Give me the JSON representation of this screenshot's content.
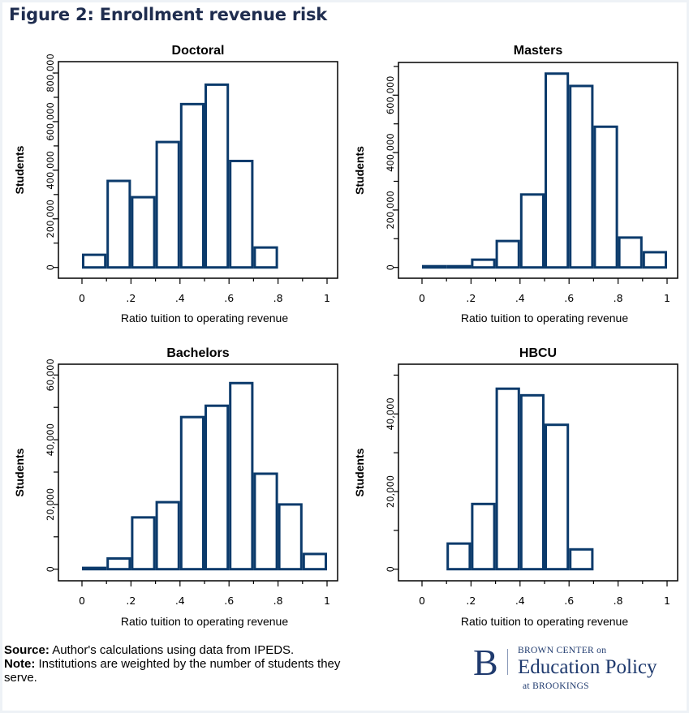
{
  "figure": {
    "title": "Figure 2: Enrollment revenue risk"
  },
  "footer": {
    "source_label": "Source:",
    "source_text": " Author's calculations using data from IPEDS.",
    "note_label": "Note:",
    "note_text": " Institutions are weighted by the number of students they serve."
  },
  "logo": {
    "mark": "B",
    "line1": "BROWN CENTER on",
    "line2": "Education Policy",
    "line3": "at BROOKINGS"
  },
  "colors": {
    "bar_stroke": "#0b3a6b",
    "bar_fill": "#ffffff",
    "title": "#1f2d4f"
  },
  "chart_data": [
    {
      "type": "bar",
      "title": "Doctoral",
      "xlabel": "Ratio tuition to operating revenue",
      "ylabel": "Students",
      "bin_edges": [
        0,
        0.1,
        0.2,
        0.3,
        0.4,
        0.5,
        0.6,
        0.7,
        0.8
      ],
      "values": [
        52000,
        356000,
        289000,
        516000,
        672000,
        752000,
        438000,
        82000
      ],
      "xlim": [
        0,
        1
      ],
      "xticks": [
        "0",
        ".2",
        ".4",
        ".6",
        ".8",
        "1"
      ],
      "yticks": [
        "0",
        "200,000",
        "400,000",
        "600,000",
        "800,000"
      ],
      "ytick_values": [
        0,
        200000,
        400000,
        600000,
        800000
      ],
      "ylim": [
        0,
        800000
      ],
      "grid": false
    },
    {
      "type": "bar",
      "title": "Masters",
      "xlabel": "Ratio tuition to operating revenue",
      "ylabel": "Students",
      "bin_edges": [
        0,
        0.1,
        0.2,
        0.3,
        0.4,
        0.5,
        0.6,
        0.7,
        0.8,
        0.9,
        1.0
      ],
      "values": [
        2000,
        1000,
        27000,
        92000,
        254000,
        675000,
        632000,
        490000,
        104000,
        53000
      ],
      "xlim": [
        0,
        1
      ],
      "xticks": [
        "0",
        ".2",
        ".4",
        ".6",
        ".8",
        "1"
      ],
      "yticks": [
        "0",
        "200,000",
        "400,000",
        "600,000"
      ],
      "ytick_values": [
        0,
        200000,
        400000,
        600000
      ],
      "ylim": [
        0,
        600000
      ],
      "grid": false
    },
    {
      "type": "bar",
      "title": "Bachelors",
      "xlabel": "Ratio tuition to operating revenue",
      "ylabel": "Students",
      "bin_edges": [
        0,
        0.1,
        0.2,
        0.3,
        0.4,
        0.5,
        0.6,
        0.7,
        0.8,
        0.9,
        1.0
      ],
      "values": [
        400,
        3300,
        16000,
        20700,
        47000,
        50500,
        57500,
        29500,
        20000,
        4700
      ],
      "xlim": [
        0,
        1
      ],
      "xticks": [
        "0",
        ".2",
        ".4",
        ".6",
        ".8",
        "1"
      ],
      "yticks": [
        "0",
        "20,000",
        "40,000",
        "60,000"
      ],
      "ytick_values": [
        0,
        20000,
        40000,
        60000
      ],
      "ylim": [
        0,
        60000
      ],
      "grid": false
    },
    {
      "type": "bar",
      "title": "HBCU",
      "xlabel": "Ratio tuition to operating revenue",
      "ylabel": "Students",
      "bin_edges": [
        0.1,
        0.2,
        0.3,
        0.4,
        0.5,
        0.6,
        0.7
      ],
      "values": [
        6600,
        16800,
        46500,
        44800,
        37200,
        5100
      ],
      "xlim": [
        0,
        1
      ],
      "xticks": [
        "0",
        ".2",
        ".4",
        ".6",
        ".8",
        "1"
      ],
      "yticks": [
        "0",
        "20,000",
        "40,000"
      ],
      "ytick_values": [
        0,
        20000,
        40000
      ],
      "ylim": [
        0,
        40000
      ],
      "grid": false
    }
  ]
}
